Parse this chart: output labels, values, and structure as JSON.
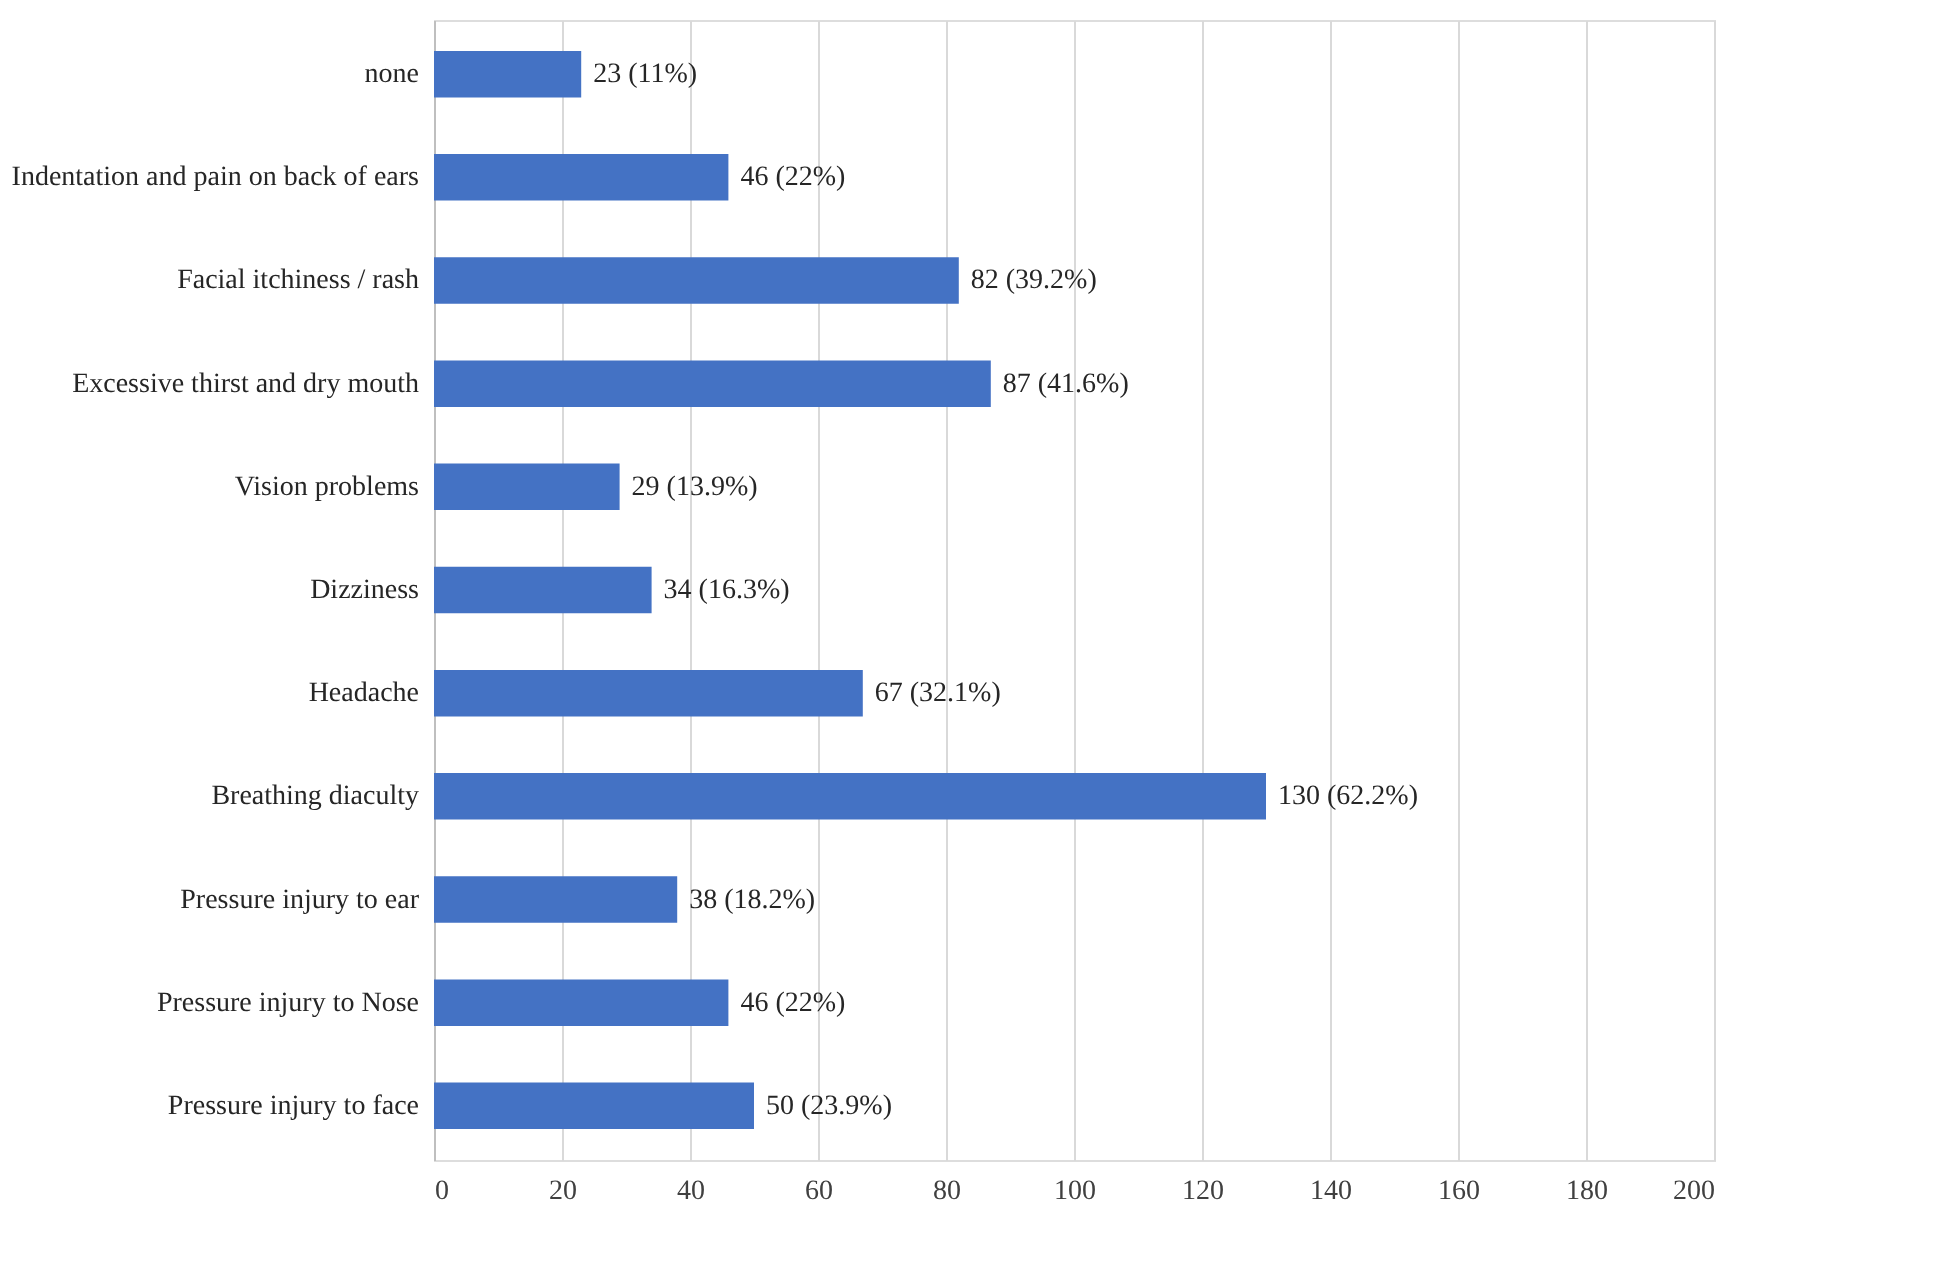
{
  "chart_data": {
    "type": "bar",
    "orientation": "horizontal",
    "categories": [
      "none",
      "Indentation and pain on back of ears",
      "Facial itchiness / rash",
      "Excessive thirst and dry mouth",
      "Vision problems",
      "Dizziness",
      "Headache",
      "Breathing diaculty",
      "Pressure injury to ear",
      "Pressure injury to Nose",
      "Pressure injury to face"
    ],
    "values": [
      23,
      46,
      82,
      87,
      29,
      34,
      67,
      130,
      38,
      46,
      50
    ],
    "value_labels": [
      "23 (11%)",
      "46 (22%)",
      "82 (39.2%)",
      "87 (41.6%)",
      "29 (13.9%)",
      "34 (16.3%)",
      "67 (32.1%)",
      "130 (62.2%)",
      "38 (18.2%)",
      "46 (22%)",
      "50 (23.9%)"
    ],
    "color": "#4472c4",
    "xlim": [
      0,
      200
    ],
    "xticks": [
      0,
      20,
      40,
      60,
      80,
      100,
      120,
      140,
      160,
      180,
      200
    ],
    "grid": "x"
  }
}
